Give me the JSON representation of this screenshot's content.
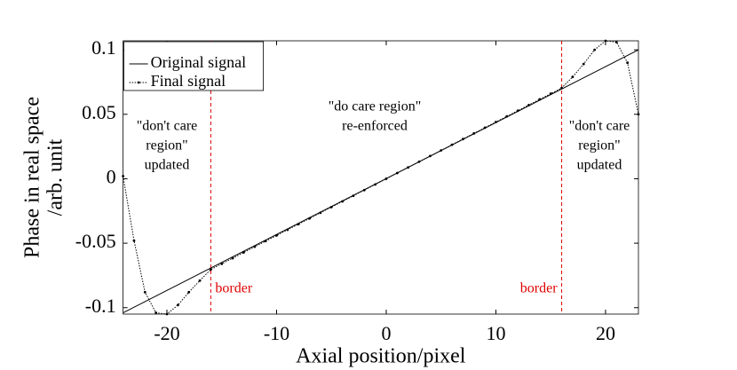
{
  "chart_data": {
    "type": "line",
    "xlabel": "Axial position/pixel",
    "ylabel": [
      "Phase in real space",
      "/arb. unit"
    ],
    "xlim": [
      -24,
      23
    ],
    "ylim": [
      -0.105,
      0.107
    ],
    "xticks": [
      -20,
      -10,
      0,
      10,
      20
    ],
    "yticks": [
      -0.1,
      -0.05,
      0,
      0.05,
      0.1
    ],
    "series": [
      {
        "name": "Original signal",
        "color": "#000000",
        "style": "solid",
        "marker": false,
        "x": [
          -24,
          23
        ],
        "values": [
          -0.104,
          0.1
        ]
      },
      {
        "name": "Final signal",
        "color": "#000000",
        "style": "dotted",
        "marker": true,
        "x": [
          -24,
          -23,
          -22,
          -21,
          -20,
          -19,
          -18,
          -17,
          -16,
          -15,
          -14,
          -13,
          -12,
          -11,
          -10,
          -9,
          -8,
          -7,
          -6,
          -5,
          -4,
          -3,
          -2,
          -1,
          0,
          1,
          2,
          3,
          4,
          5,
          6,
          7,
          8,
          9,
          10,
          11,
          12,
          13,
          14,
          15,
          16,
          17,
          18,
          19,
          20,
          21,
          22,
          23
        ],
        "values": [
          0.002,
          -0.048,
          -0.088,
          -0.104,
          -0.105,
          -0.098,
          -0.088,
          -0.079,
          -0.0704,
          -0.066,
          -0.0616,
          -0.0572,
          -0.0528,
          -0.0484,
          -0.044,
          -0.0396,
          -0.0352,
          -0.0308,
          -0.0264,
          -0.022,
          -0.0176,
          -0.0132,
          -0.0088,
          -0.0044,
          0,
          0.0044,
          0.0088,
          0.0132,
          0.0176,
          0.022,
          0.0264,
          0.0308,
          0.0352,
          0.0396,
          0.044,
          0.0484,
          0.0528,
          0.0572,
          0.0616,
          0.066,
          0.0704,
          0.079,
          0.089,
          0.1,
          0.107,
          0.106,
          0.09,
          0.05
        ]
      }
    ],
    "vlines": [
      {
        "x": -16,
        "label": "border",
        "color": "#e00000"
      },
      {
        "x": 16,
        "label": "border",
        "color": "#e00000"
      }
    ],
    "annotations": [
      [
        "\"don't care",
        "region\"",
        "updated"
      ],
      [
        "\"do care region\"",
        "re-enforced"
      ],
      [
        "\"don't care",
        "region\"",
        "updated"
      ]
    ]
  }
}
